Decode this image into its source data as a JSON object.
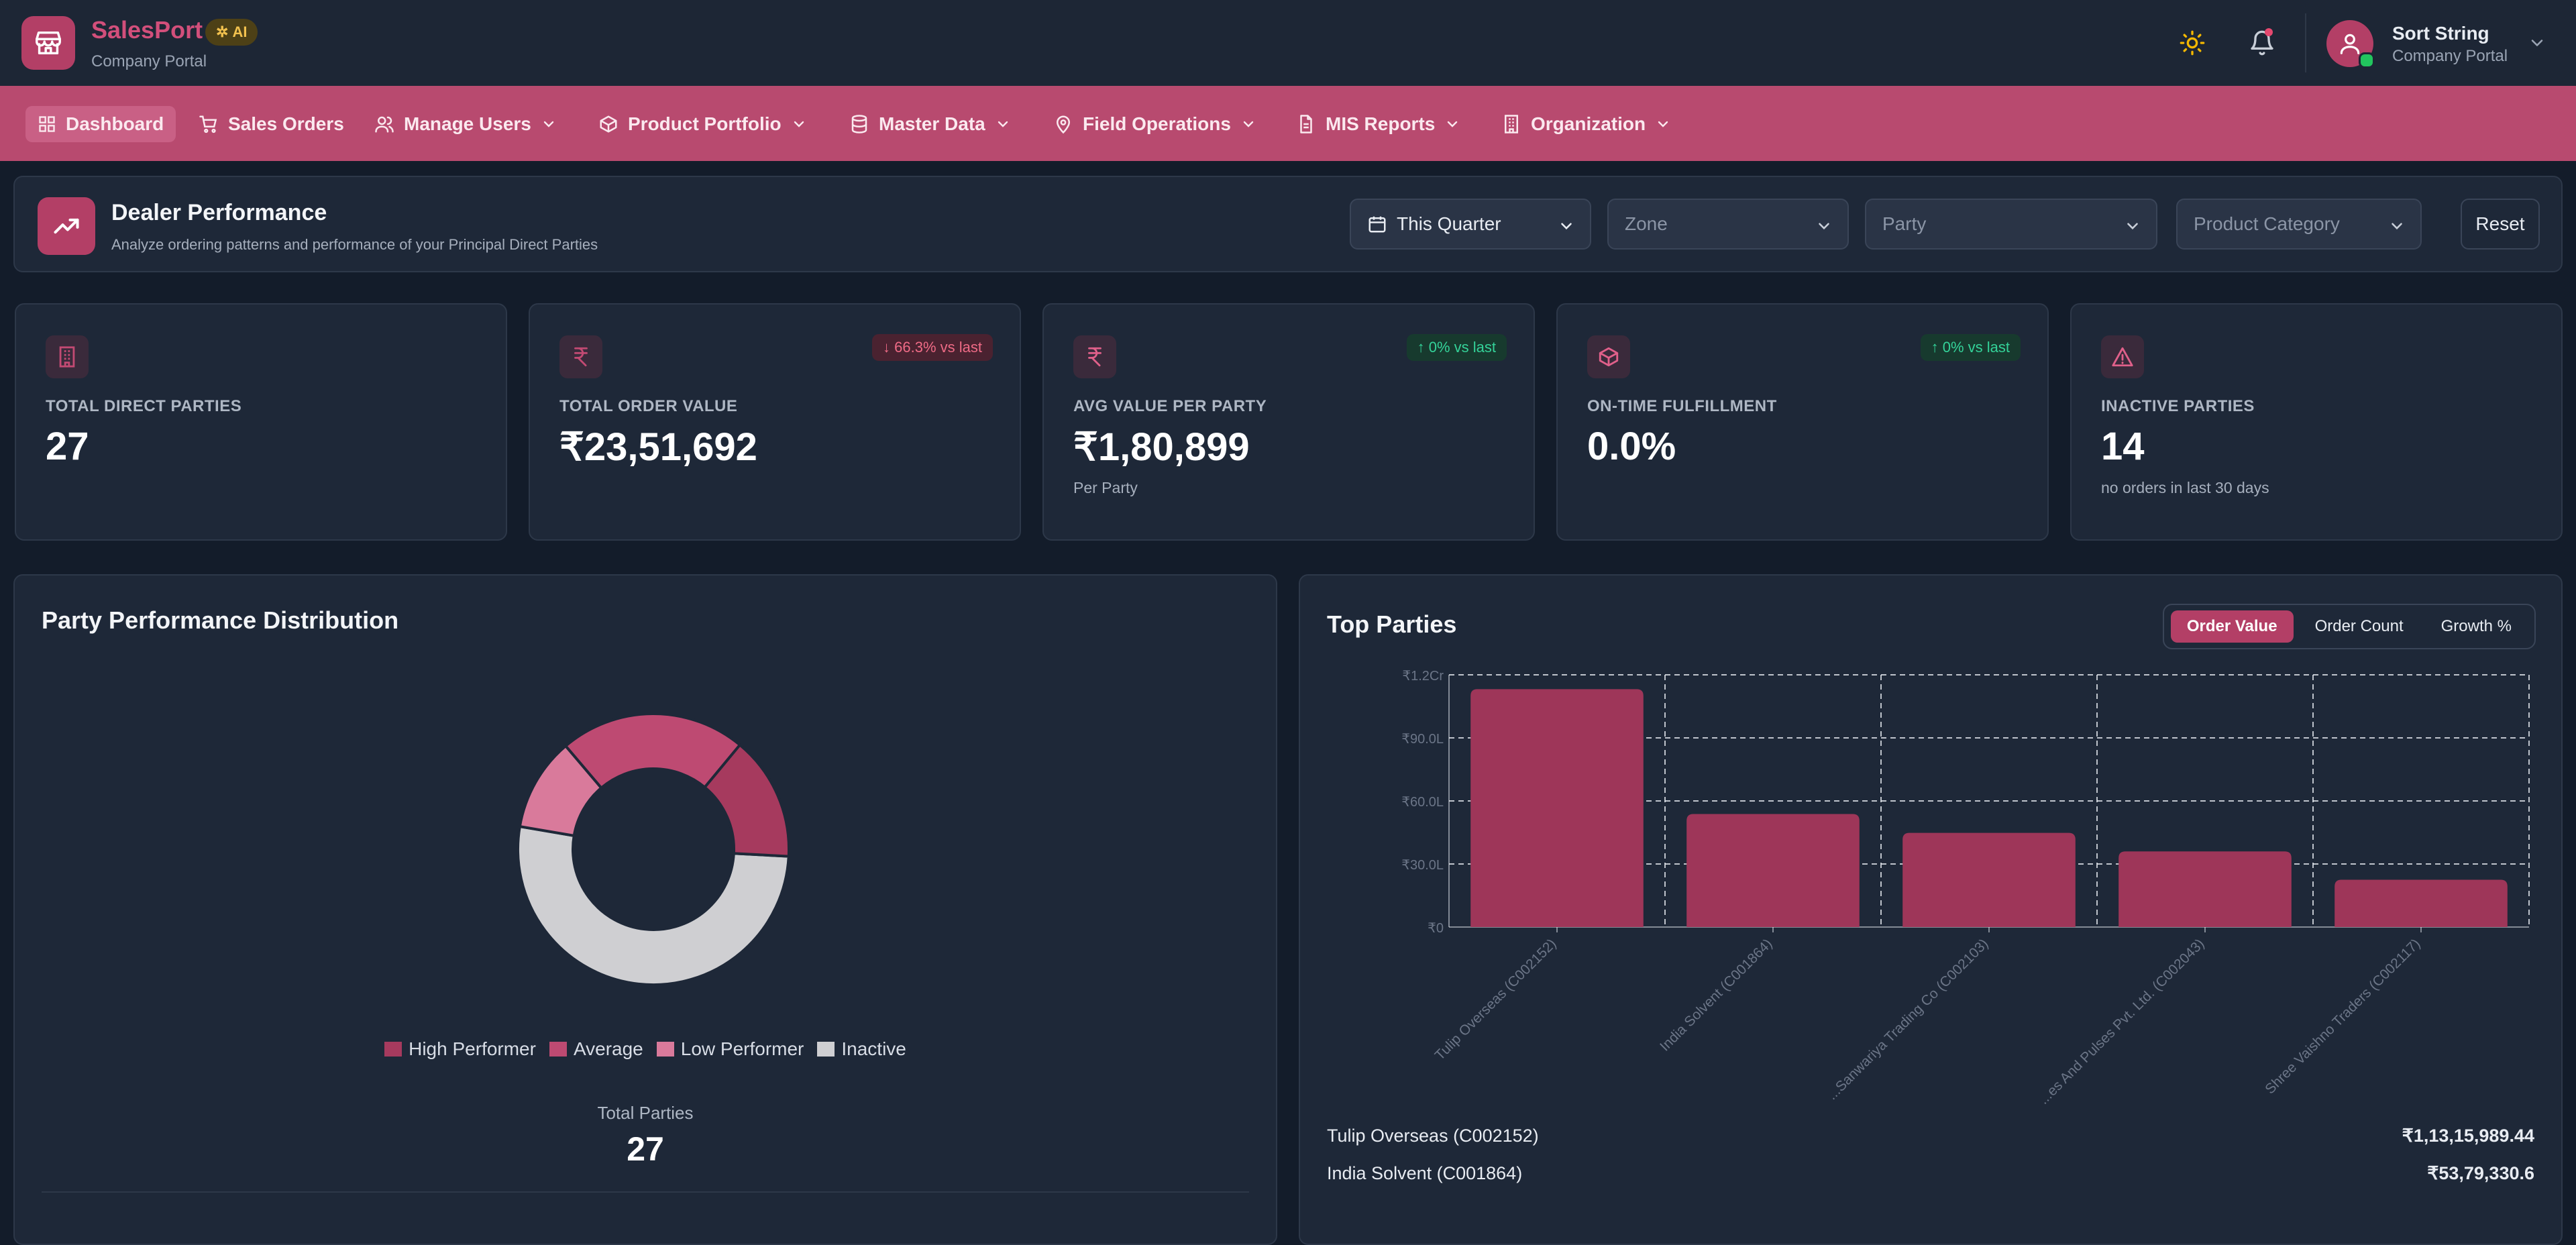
{
  "app": {
    "name": "SalesPort",
    "badge": "AI",
    "subtitle": "Company Portal"
  },
  "user": {
    "name": "Sort String",
    "org": "Company Portal"
  },
  "nav": {
    "items": [
      {
        "label": "Dashboard",
        "icon": "grid-icon",
        "active": true,
        "dropdown": false
      },
      {
        "label": "Sales Orders",
        "icon": "cart-icon",
        "active": false,
        "dropdown": false
      },
      {
        "label": "Manage Users",
        "icon": "users-icon",
        "active": false,
        "dropdown": true
      },
      {
        "label": "Product Portfolio",
        "icon": "box-icon",
        "active": false,
        "dropdown": true
      },
      {
        "label": "Master Data",
        "icon": "database-icon",
        "active": false,
        "dropdown": true
      },
      {
        "label": "Field Operations",
        "icon": "map-pin-icon",
        "active": false,
        "dropdown": true
      },
      {
        "label": "MIS Reports",
        "icon": "file-icon",
        "active": false,
        "dropdown": true
      },
      {
        "label": "Organization",
        "icon": "building-icon",
        "active": false,
        "dropdown": true
      }
    ]
  },
  "page": {
    "title": "Dealer Performance",
    "subtitle": "Analyze ordering patterns and performance of your Principal Direct Parties"
  },
  "filters": {
    "period": "This Quarter",
    "zone_placeholder": "Zone",
    "party_placeholder": "Party",
    "category_placeholder": "Product Category",
    "reset_label": "Reset"
  },
  "kpis": [
    {
      "label": "TOTAL DIRECT PARTIES",
      "value": "27",
      "foot": "",
      "trend": "",
      "trend_dir": "",
      "icon": "building-icon"
    },
    {
      "label": "TOTAL ORDER VALUE",
      "value": "₹23,51,692",
      "foot": "",
      "trend": "↓ 66.3% vs last",
      "trend_dir": "down",
      "icon": "rupee-icon"
    },
    {
      "label": "AVG VALUE PER PARTY",
      "value": "₹1,80,899",
      "foot": "Per Party",
      "trend": "↑ 0% vs last",
      "trend_dir": "up",
      "icon": "rupee-icon"
    },
    {
      "label": "ON-TIME FULFILLMENT",
      "value": "0.0%",
      "foot": "",
      "trend": "↑ 0% vs last",
      "trend_dir": "up",
      "icon": "package-icon"
    },
    {
      "label": "INACTIVE PARTIES",
      "value": "14",
      "foot": "no orders in last 30 days",
      "trend": "",
      "trend_dir": "",
      "icon": "alert-triangle-icon"
    }
  ],
  "distribution": {
    "title": "Party Performance Distribution",
    "total_label": "Total Parties",
    "total_value": "27",
    "legend": [
      {
        "name": "High Performer",
        "color": "#a63a5e"
      },
      {
        "name": "Average",
        "color": "#be4a72"
      },
      {
        "name": "Low Performer",
        "color": "#d97a9b"
      },
      {
        "name": "Inactive",
        "color": "#cfcfd2"
      }
    ]
  },
  "top_parties": {
    "title": "Top Parties",
    "toggles": [
      "Order Value",
      "Order Count",
      "Growth %"
    ],
    "active_toggle": "Order Value",
    "rows": [
      {
        "name": "Tulip Overseas (C002152)",
        "value": "₹1,13,15,989.44"
      },
      {
        "name": "India Solvent (C001864)",
        "value": "₹53,79,330.6"
      }
    ]
  },
  "chart_data": [
    {
      "type": "pie",
      "title": "Party Performance Distribution",
      "categories": [
        "High Performer",
        "Average",
        "Low Performer",
        "Inactive"
      ],
      "values": [
        4,
        6,
        3,
        14
      ],
      "colors": [
        "#a63a5e",
        "#be4a72",
        "#d97a9b",
        "#cfcfd2"
      ],
      "donut": true,
      "legend": "bottom"
    },
    {
      "type": "bar",
      "title": "Top Parties",
      "categories": [
        "Tulip Overseas (C002152)",
        "India Solvent (C001864)",
        "Shree Sanwariya Trading Co (C002103)",
        "...es And Pulses Pvt. Ltd. (C002043)",
        "Shree Vaishno Traders (C002117)"
      ],
      "category_labels": [
        "Tulip Overseas (C002152)",
        "India Solvent (C001864)",
        "...Sanwariya Trading Co (C002103)",
        "...es And Pulses Pvt. Ltd. (C002043)",
        "Shree Vaishno Traders (C002117)"
      ],
      "values": [
        11315989.44,
        5379330.6,
        4480000,
        3600000,
        2250000
      ],
      "ylim": [
        0,
        12000000
      ],
      "yticks": [
        0,
        3000000,
        6000000,
        9000000,
        12000000
      ],
      "ytick_labels": [
        "₹0",
        "₹30.0L",
        "₹60.0L",
        "₹90.0L",
        "₹1.2Cr"
      ],
      "grid": true,
      "color": "#9e3659"
    }
  ]
}
